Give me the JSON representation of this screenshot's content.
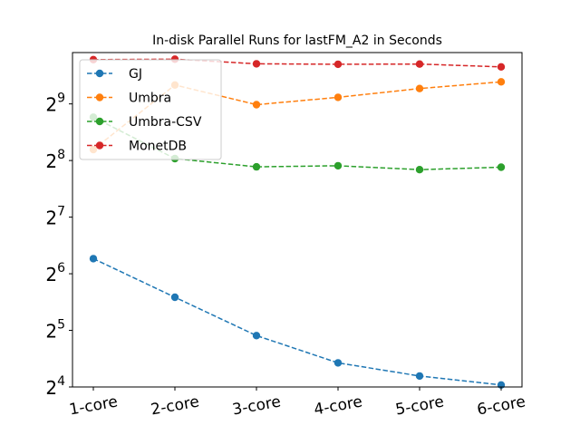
{
  "chart_data": {
    "type": "line",
    "title": "In-disk Parallel Runs for lastFM_A2 in Seconds",
    "xlabel": "",
    "ylabel": "",
    "yscale": "log2",
    "categories": [
      "1-core",
      "2-core",
      "3-core",
      "4-core",
      "5-core",
      "6-core"
    ],
    "ylim": [
      16,
      960
    ],
    "y_ticks": [
      {
        "base": "2",
        "exp": "4",
        "value": 16
      },
      {
        "base": "2",
        "exp": "5",
        "value": 32
      },
      {
        "base": "2",
        "exp": "6",
        "value": 64
      },
      {
        "base": "2",
        "exp": "7",
        "value": 128
      },
      {
        "base": "2",
        "exp": "8",
        "value": 256
      },
      {
        "base": "2",
        "exp": "9",
        "value": 512
      }
    ],
    "series": [
      {
        "name": "GJ",
        "color": "#1f77b4",
        "values": [
          77,
          48,
          30,
          21.5,
          18.3,
          16.4
        ]
      },
      {
        "name": "Umbra",
        "color": "#ff7f0e",
        "values": [
          293,
          645,
          507,
          555,
          618,
          671
        ]
      },
      {
        "name": "Umbra-CSV",
        "color": "#2ca02c",
        "values": [
          435,
          262,
          237,
          240,
          229,
          236
        ]
      },
      {
        "name": "MonetDB",
        "color": "#d62728",
        "values": [
          880,
          885,
          837,
          832,
          834,
          806
        ]
      }
    ],
    "legend": {
      "position": "top-left"
    },
    "grid": false
  }
}
